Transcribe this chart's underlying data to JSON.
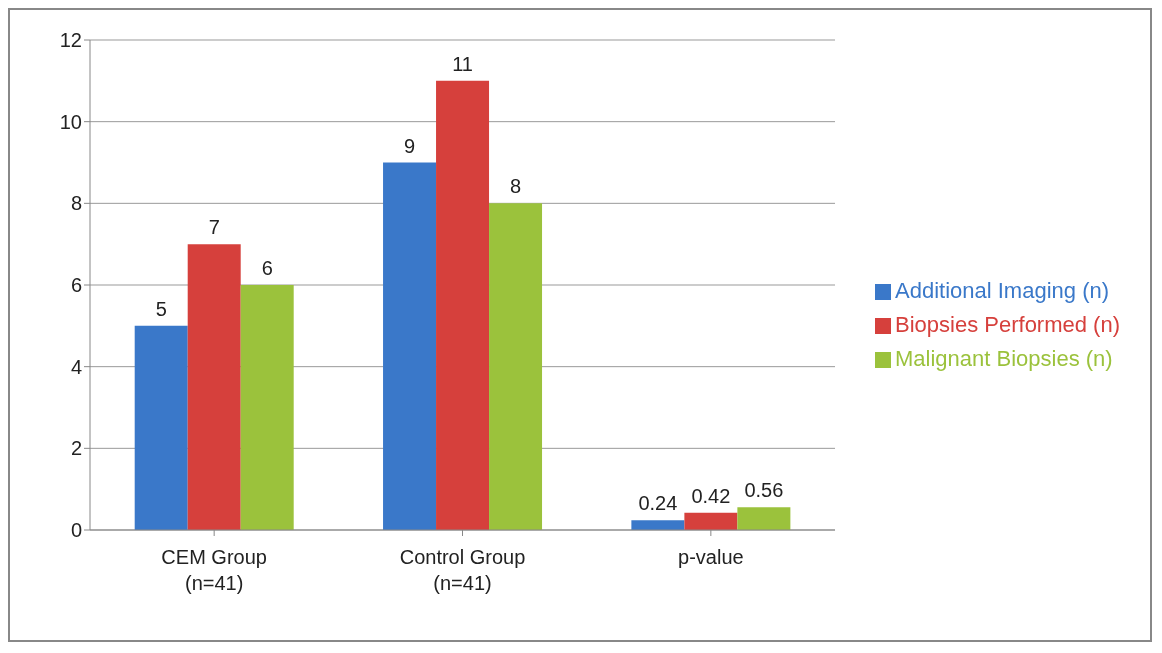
{
  "chart_data": {
    "type": "bar",
    "categories": [
      "CEM Group (n=41)",
      "Control Group (n=41)",
      "p-value"
    ],
    "series": [
      {
        "name": "Additional Imaging (n)",
        "color": "#3a78c9",
        "values": [
          5,
          9,
          0.24
        ]
      },
      {
        "name": "Biopsies Performed (n)",
        "color": "#d6403c",
        "values": [
          7,
          11,
          0.42
        ]
      },
      {
        "name": "Malignant Biopsies (n)",
        "color": "#9bc23c",
        "values": [
          6,
          8,
          0.56
        ]
      }
    ],
    "ylim": [
      0,
      12
    ],
    "yticks": [
      0,
      2,
      4,
      6,
      8,
      10,
      12
    ],
    "grid": "y",
    "legend": "right",
    "data_labels": true
  }
}
